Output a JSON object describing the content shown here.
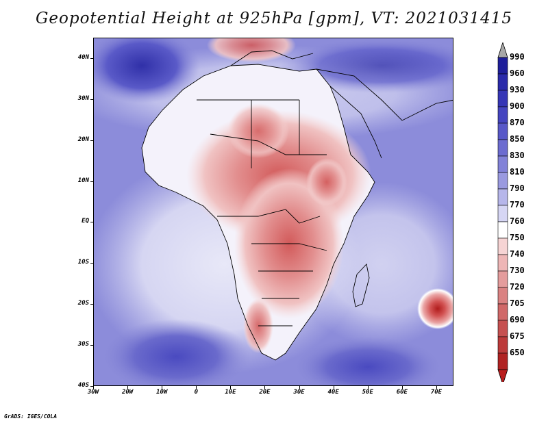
{
  "title": "Geopotential Height at 925hPa [gpm], VT: 2021031415",
  "credit": "GrADS: IGES/COLA",
  "map": {
    "lon_range": [
      -30,
      75
    ],
    "lat_range": [
      -40,
      45
    ],
    "lat_ticks": [
      {
        "value": 40,
        "label": "40N"
      },
      {
        "value": 30,
        "label": "30N"
      },
      {
        "value": 20,
        "label": "20N"
      },
      {
        "value": 10,
        "label": "10N"
      },
      {
        "value": 0,
        "label": "EQ"
      },
      {
        "value": -10,
        "label": "10S"
      },
      {
        "value": -20,
        "label": "20S"
      },
      {
        "value": -30,
        "label": "30S"
      },
      {
        "value": -40,
        "label": "40S"
      }
    ],
    "lon_ticks": [
      {
        "value": -30,
        "label": "30W"
      },
      {
        "value": -20,
        "label": "20W"
      },
      {
        "value": -10,
        "label": "10W"
      },
      {
        "value": 0,
        "label": "0"
      },
      {
        "value": 10,
        "label": "10E"
      },
      {
        "value": 20,
        "label": "20E"
      },
      {
        "value": 30,
        "label": "30E"
      },
      {
        "value": 40,
        "label": "40E"
      },
      {
        "value": 50,
        "label": "50E"
      },
      {
        "value": 60,
        "label": "60E"
      },
      {
        "value": 70,
        "label": "70E"
      }
    ]
  },
  "colorbar": {
    "levels": [
      {
        "label": "990",
        "color": "#1e1e9a"
      },
      {
        "label": "960",
        "color": "#2a2aaa"
      },
      {
        "label": "930",
        "color": "#3636b6"
      },
      {
        "label": "900",
        "color": "#4545c0"
      },
      {
        "label": "870",
        "color": "#5858c8"
      },
      {
        "label": "850",
        "color": "#6c6cd0"
      },
      {
        "label": "830",
        "color": "#8282d8"
      },
      {
        "label": "810",
        "color": "#9a9ae0"
      },
      {
        "label": "790",
        "color": "#b6b6ea"
      },
      {
        "label": "770",
        "color": "#d6d6f4"
      },
      {
        "label": "760",
        "color": "#ffffff"
      },
      {
        "label": "750",
        "color": "#f6d4d4"
      },
      {
        "label": "740",
        "color": "#eeb6b6"
      },
      {
        "label": "730",
        "color": "#e49c9c"
      },
      {
        "label": "720",
        "color": "#da8282"
      },
      {
        "label": "705",
        "color": "#d06868"
      },
      {
        "label": "690",
        "color": "#c65050"
      },
      {
        "label": "675",
        "color": "#bc3a3a"
      },
      {
        "label": "650",
        "color": "#b02222"
      }
    ],
    "over_color": "#a8a8a8",
    "under_color": "#b81c1c"
  }
}
